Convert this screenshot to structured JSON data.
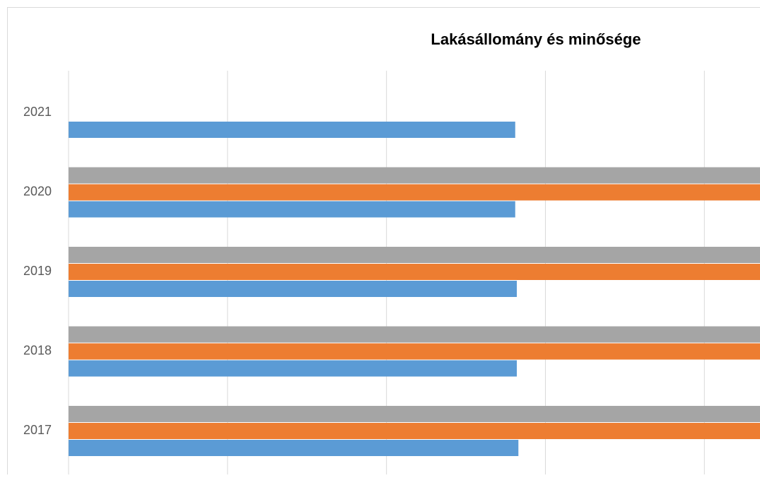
{
  "chart_data": {
    "type": "hbar",
    "title": "Lakásállomány és minősége",
    "categories": [
      "2017",
      "2018",
      "2019",
      "2020",
      "2021"
    ],
    "series": [
      {
        "color": "#5b9bd5",
        "values": [
          2.83,
          2.82,
          2.82,
          2.81,
          2.81
        ]
      },
      {
        "color": "#ed7d31",
        "values": [
          4.5,
          4.5,
          4.5,
          4.5,
          null
        ]
      },
      {
        "color": "#a5a5a5",
        "values": [
          4.5,
          4.5,
          4.5,
          4.5,
          null
        ]
      }
    ],
    "xlim": [
      0,
      4.35
    ],
    "xticks": [
      0,
      1,
      2,
      3,
      4
    ],
    "grid": true
  }
}
